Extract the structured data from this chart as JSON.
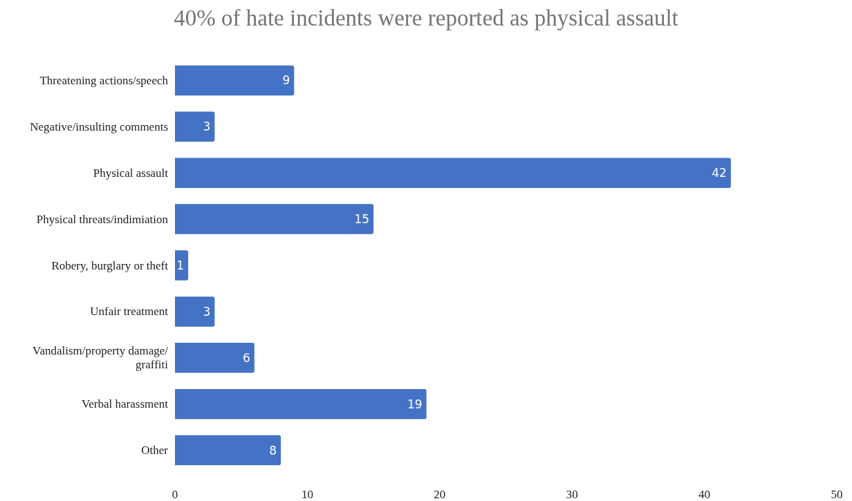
{
  "chart_data": {
    "type": "bar",
    "orientation": "horizontal",
    "title": "40% of hate incidents were reported as physical assault",
    "categories": [
      "Threatening actions/speech",
      "Negative/insulting comments",
      "Physical assault",
      "Physical threats/indimiation",
      "Robery, burglary or theft",
      "Unfair treatment",
      "Vandalism/property damage/graffiti",
      "Verbal harassment",
      "Other"
    ],
    "values": [
      9,
      3,
      42,
      15,
      1,
      3,
      6,
      19,
      8
    ],
    "color": "#4472c4",
    "xlim": [
      0,
      50
    ],
    "xticks": [
      0,
      10,
      20,
      30,
      40,
      50
    ],
    "data_labels": true
  }
}
